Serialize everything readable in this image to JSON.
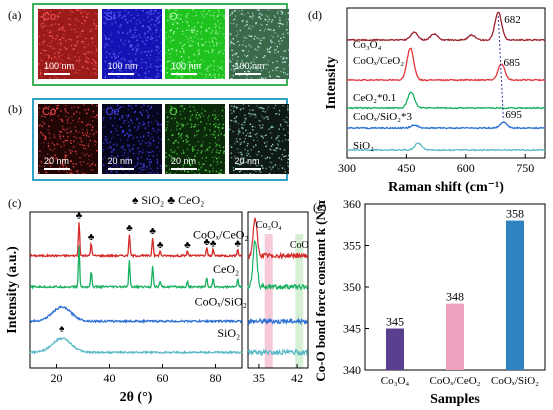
{
  "panel_labels": {
    "a": "(a)",
    "b": "(b)",
    "c": "(c)",
    "d": "(d)",
    "e": "(e)"
  },
  "eds_a": {
    "frame_color": "#3daf5a",
    "tiles": [
      {
        "element": "Co",
        "scale": "100 nm",
        "bg": "#9b1b1b",
        "fg": "#ff5a5a"
      },
      {
        "element": "Si",
        "scale": "100 nm",
        "bg": "#1414b4",
        "fg": "#6c6cff"
      },
      {
        "element": "O",
        "scale": "100 nm",
        "bg": "#1fc21f",
        "fg": "#b6ffb6"
      },
      {
        "element": "",
        "scale": "100 nm",
        "bg": "#3a6a4a",
        "fg": "#d0f0f0"
      }
    ]
  },
  "eds_b": {
    "frame_color": "#2fa3c8",
    "tiles": [
      {
        "element": "Co",
        "scale": "20 nm",
        "bg": "#220606",
        "fg": "#ff4a4a"
      },
      {
        "element": "Ce",
        "scale": "20 nm",
        "bg": "#05051e",
        "fg": "#4a4aff"
      },
      {
        "element": "O",
        "scale": "20 nm",
        "bg": "#0a2a0a",
        "fg": "#59e04a"
      },
      {
        "element": "",
        "scale": "20 nm",
        "bg": "#101a14",
        "fg": "#9adfc8"
      }
    ]
  },
  "chart_data": [
    {
      "id": "c",
      "type": "line",
      "ylabel": "Intensity (a.u.)",
      "xlabel": "2θ (°)",
      "xlim": [
        10,
        90
      ],
      "xticks": [
        20,
        40,
        60,
        80
      ],
      "legend_markers": [
        {
          "symbol": "♠",
          "label": "SiO₂"
        },
        {
          "symbol": "♣",
          "label": "CeO₂"
        }
      ],
      "series": [
        {
          "name": "CoOₓ/CeO₂",
          "color": "#d42a2a",
          "baseline": 0.72,
          "peaks": [
            [
              28.5,
              0.22
            ],
            [
              33.1,
              0.08
            ],
            [
              47.5,
              0.14
            ],
            [
              56.3,
              0.12
            ],
            [
              59.1,
              0.03
            ],
            [
              69.4,
              0.03
            ],
            [
              76.7,
              0.05
            ],
            [
              79.1,
              0.04
            ],
            [
              88.4,
              0.04
            ]
          ]
        },
        {
          "name": "CeO₂",
          "color": "#18b060",
          "baseline": 0.52,
          "peaks": [
            [
              28.5,
              0.26
            ],
            [
              33.1,
              0.1
            ],
            [
              47.5,
              0.17
            ],
            [
              56.3,
              0.14
            ],
            [
              59.1,
              0.035
            ],
            [
              69.4,
              0.035
            ],
            [
              76.7,
              0.06
            ],
            [
              79.1,
              0.05
            ],
            [
              88.4,
              0.05
            ]
          ]
        },
        {
          "name": "CoOₓ/SiO₂",
          "color": "#2a6fd4",
          "baseline": 0.3
        },
        {
          "name": "SiO₂",
          "color": "#5bb8c8",
          "baseline": 0.1
        }
      ],
      "club_positions": [
        28.5,
        33.1,
        47.5,
        56.3,
        59.1,
        69.4,
        76.7,
        79.1,
        88.4
      ],
      "spade_position": 22
    },
    {
      "id": "c-zoom",
      "type": "line",
      "xlim": [
        33,
        44
      ],
      "xticks": [
        35,
        42
      ],
      "labels": [
        "Co₃O₄",
        "CoO"
      ],
      "highlight_bands": [
        {
          "x": 36.8,
          "color": "#f4b8cc"
        },
        {
          "x": 42.4,
          "color": "#c8ebc8"
        }
      ]
    },
    {
      "id": "d",
      "type": "line",
      "ylabel": "Intensity",
      "xlabel": "Raman shift (cm⁻¹)",
      "xlim": [
        300,
        800
      ],
      "xticks": [
        300,
        450,
        600,
        750
      ],
      "series": [
        {
          "name": "Co₃O₄",
          "color": "#9c1f2e"
        },
        {
          "name": "CoOₓ/CeO₂",
          "color": "#e0373c"
        },
        {
          "name": "CeO₂*0.1",
          "color": "#18b060"
        },
        {
          "name": "CoOₓ/SiO₂*3",
          "color": "#2a6fd4"
        },
        {
          "name": "SiO₂",
          "color": "#5bb8c8"
        }
      ],
      "annotations": [
        "682",
        "685",
        "695"
      ]
    },
    {
      "id": "e",
      "type": "bar",
      "ylabel": "Co-O bond force constant k (N/m)",
      "xlabel": "Samples",
      "ylim": [
        340,
        360
      ],
      "yticks": [
        340,
        345,
        350,
        355,
        360
      ],
      "categories": [
        "Co₃O₄",
        "CoOₓ/CeO₂",
        "CoOₓ/SiO₂"
      ],
      "values": [
        345,
        348,
        358
      ],
      "value_labels": [
        "345",
        "348",
        "358"
      ],
      "colors": [
        "#5a3f8f",
        "#ef9fc0",
        "#2f83c0"
      ]
    }
  ]
}
